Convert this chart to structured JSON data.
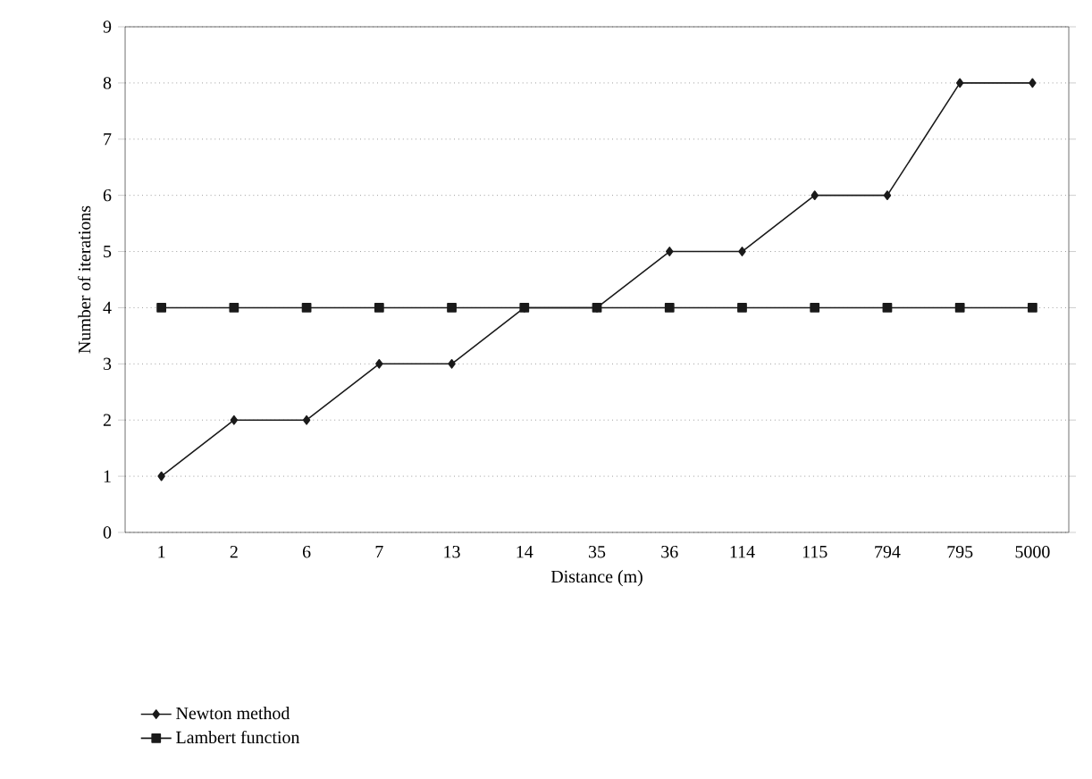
{
  "chart_data": {
    "type": "line",
    "xlabel": "Distance (m)",
    "ylabel": "Number of iterations",
    "categories": [
      "1",
      "2",
      "6",
      "7",
      "13",
      "14",
      "35",
      "36",
      "114",
      "115",
      "794",
      "795",
      "5000"
    ],
    "series": [
      {
        "name": "Newton method",
        "color": "#1a1a1a",
        "marker": "diamond",
        "values": [
          1,
          2,
          2,
          3,
          3,
          4,
          4,
          5,
          5,
          6,
          6,
          8,
          8
        ]
      },
      {
        "name": "Lambert function",
        "color": "#1a1a1a",
        "marker": "square",
        "values": [
          4,
          4,
          4,
          4,
          4,
          4,
          4,
          4,
          4,
          4,
          4,
          4,
          4
        ]
      }
    ],
    "ylim": [
      0,
      9
    ],
    "yticks": [
      0,
      1,
      2,
      3,
      4,
      5,
      6,
      7,
      8,
      9
    ],
    "grid": "y",
    "legend": "bottom left",
    "line_style": "solid"
  }
}
